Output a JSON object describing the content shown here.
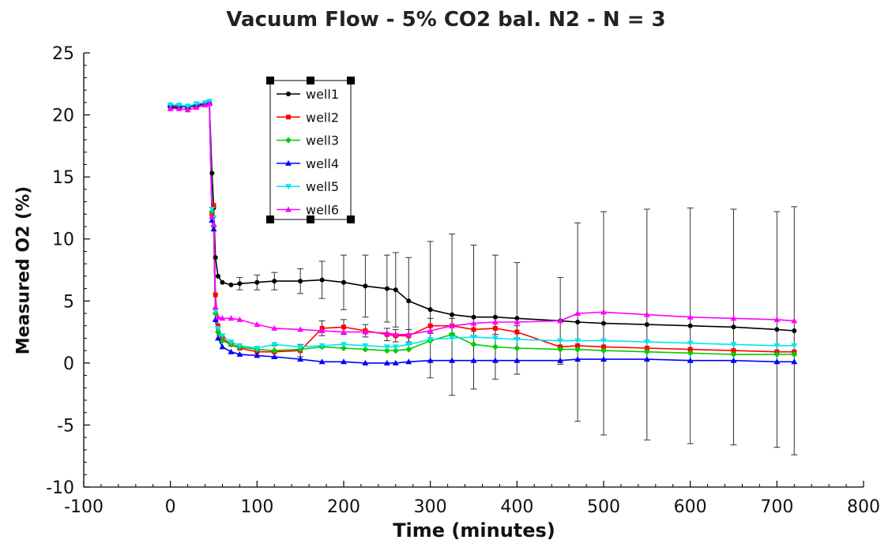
{
  "chart_data": {
    "type": "line",
    "title": "Vacuum Flow - 5% CO2 bal. N2 - N = 3",
    "xlabel": "Time (minutes)",
    "ylabel": "Measured O2  (%)",
    "xlim": [
      -100,
      800
    ],
    "ylim": [
      -10,
      25
    ],
    "xticks": [
      "-100",
      "0",
      "100",
      "200",
      "300",
      "400",
      "500",
      "600",
      "700",
      "800"
    ],
    "yticks": [
      "-10",
      "-5",
      "0",
      "5",
      "10",
      "15",
      "20",
      "25"
    ],
    "grid": false,
    "legend_position": "upper-left",
    "x": [
      0,
      10,
      20,
      30,
      40,
      45,
      48,
      50,
      52,
      55,
      60,
      70,
      80,
      100,
      120,
      150,
      175,
      200,
      225,
      250,
      260,
      275,
      300,
      325,
      350,
      375,
      400,
      450,
      470,
      500,
      550,
      600,
      650,
      700,
      720
    ],
    "series": [
      {
        "name": "well1",
        "color": "#000000",
        "marker": "circle",
        "values": [
          20.6,
          20.6,
          20.7,
          20.8,
          20.9,
          21.0,
          15.3,
          12.5,
          8.5,
          7.0,
          6.5,
          6.3,
          6.4,
          6.5,
          6.6,
          6.6,
          6.7,
          6.5,
          6.2,
          6.0,
          5.9,
          5.0,
          4.3,
          3.9,
          3.7,
          3.7,
          3.6,
          3.4,
          3.3,
          3.2,
          3.1,
          3.0,
          2.9,
          2.7,
          2.6
        ],
        "error": [
          0.2,
          0.2,
          0.2,
          0.2,
          0.2,
          0.2,
          0.4,
          0.4,
          0.4,
          0.3,
          0.3,
          0.4,
          0.5,
          0.6,
          0.7,
          1.0,
          1.5,
          2.2,
          2.5,
          2.7,
          3.0,
          3.5,
          5.5,
          6.5,
          5.8,
          5.0,
          4.5,
          3.5,
          8.0,
          9.0,
          9.3,
          9.5,
          9.5,
          9.5,
          10.0
        ]
      },
      {
        "name": "well2",
        "color": "#ff0000",
        "marker": "square",
        "values": [
          20.8,
          20.7,
          20.6,
          20.7,
          20.8,
          20.9,
          12.0,
          12.7,
          5.5,
          3.0,
          2.0,
          1.5,
          1.2,
          0.9,
          0.9,
          1.0,
          2.8,
          2.9,
          2.6,
          2.3,
          2.2,
          2.2,
          3.0,
          3.0,
          2.7,
          2.8,
          2.5,
          1.3,
          1.4,
          1.3,
          1.2,
          1.1,
          1.0,
          0.9,
          0.9
        ],
        "error": [
          0.2,
          0.2,
          0.2,
          0.2,
          0.2,
          0.2,
          0.4,
          0.4,
          0.4,
          0.3,
          0.3,
          0.3,
          0.3,
          0.4,
          0.5,
          0.5,
          0.6,
          0.6,
          0.5,
          0.5,
          0.5,
          0.5,
          0.6,
          0.6,
          0.5,
          0.5,
          0.5,
          0.3,
          0.3,
          0.3,
          0.3,
          0.3,
          0.3,
          0.3,
          0.3
        ]
      },
      {
        "name": "well3",
        "color": "#00cc00",
        "marker": "diamond",
        "values": [
          20.7,
          20.7,
          20.6,
          20.8,
          20.9,
          21.0,
          12.2,
          11.0,
          4.0,
          2.5,
          1.8,
          1.5,
          1.3,
          1.1,
          1.0,
          1.1,
          1.3,
          1.2,
          1.1,
          1.0,
          1.0,
          1.1,
          1.8,
          2.3,
          1.5,
          1.3,
          1.2,
          1.1,
          1.1,
          1.0,
          0.9,
          0.8,
          0.7,
          0.7,
          0.7
        ],
        "error": [
          0.2,
          0.2,
          0.2,
          0.2,
          0.2,
          0.2,
          0.4,
          0.4,
          0.4,
          0.3,
          0.3,
          0.3,
          0.3,
          0.3,
          0.3,
          0.3,
          0.3,
          0.3,
          0.3,
          0.3,
          0.3,
          0.3,
          0.3,
          0.3,
          0.3,
          0.3,
          0.3,
          0.3,
          0.3,
          0.3,
          0.3,
          0.3,
          0.3,
          0.3,
          0.3
        ]
      },
      {
        "name": "well4",
        "color": "#0000ff",
        "marker": "triangle-up",
        "values": [
          20.8,
          20.7,
          20.7,
          20.8,
          20.9,
          21.0,
          11.5,
          10.8,
          3.5,
          2.0,
          1.3,
          0.9,
          0.7,
          0.6,
          0.5,
          0.3,
          0.1,
          0.1,
          0.0,
          0.0,
          0.0,
          0.1,
          0.2,
          0.2,
          0.2,
          0.2,
          0.2,
          0.2,
          0.3,
          0.3,
          0.3,
          0.2,
          0.2,
          0.1,
          0.1
        ],
        "error": [
          0.2,
          0.2,
          0.2,
          0.2,
          0.2,
          0.2,
          0.4,
          0.4,
          0.4,
          0.3,
          0.3,
          0.3,
          0.3,
          0.3,
          0.3,
          0.3,
          0.2,
          0.2,
          0.2,
          0.2,
          0.2,
          0.2,
          0.2,
          0.2,
          0.2,
          0.2,
          0.2,
          0.2,
          0.2,
          0.2,
          0.2,
          0.2,
          0.2,
          0.2,
          0.2
        ]
      },
      {
        "name": "well5",
        "color": "#00e5ee",
        "marker": "triangle-down",
        "values": [
          20.8,
          20.8,
          20.7,
          20.9,
          21.0,
          21.1,
          12.4,
          11.7,
          4.2,
          2.8,
          2.2,
          1.7,
          1.4,
          1.2,
          1.5,
          1.3,
          1.4,
          1.5,
          1.4,
          1.3,
          1.3,
          1.5,
          1.9,
          2.0,
          2.1,
          2.0,
          1.9,
          1.8,
          1.8,
          1.8,
          1.7,
          1.6,
          1.5,
          1.4,
          1.4
        ],
        "error": [
          0.2,
          0.2,
          0.2,
          0.2,
          0.2,
          0.2,
          0.4,
          0.4,
          0.4,
          0.3,
          0.3,
          0.3,
          0.3,
          0.3,
          0.3,
          0.3,
          0.3,
          0.3,
          0.3,
          0.3,
          0.3,
          0.3,
          0.3,
          0.3,
          0.3,
          0.3,
          0.3,
          0.3,
          0.3,
          0.3,
          0.3,
          0.3,
          0.3,
          0.3,
          0.3
        ]
      },
      {
        "name": "well6",
        "color": "#ff00ff",
        "marker": "triangle-up",
        "values": [
          20.5,
          20.5,
          20.4,
          20.6,
          20.8,
          20.9,
          11.8,
          11.2,
          4.5,
          3.7,
          3.6,
          3.6,
          3.5,
          3.1,
          2.8,
          2.7,
          2.6,
          2.5,
          2.5,
          2.4,
          2.3,
          2.3,
          2.6,
          3.0,
          3.2,
          3.3,
          3.3,
          3.4,
          4.0,
          4.1,
          3.9,
          3.7,
          3.6,
          3.5,
          3.4
        ],
        "error": [
          0.2,
          0.2,
          0.2,
          0.2,
          0.2,
          0.2,
          0.4,
          0.4,
          0.4,
          0.3,
          0.3,
          0.3,
          0.3,
          0.3,
          0.3,
          0.3,
          0.3,
          0.3,
          0.3,
          0.3,
          0.3,
          0.3,
          0.3,
          0.3,
          0.3,
          0.3,
          0.3,
          0.3,
          0.3,
          0.3,
          0.3,
          0.3,
          0.3,
          0.3,
          0.3
        ]
      }
    ]
  }
}
